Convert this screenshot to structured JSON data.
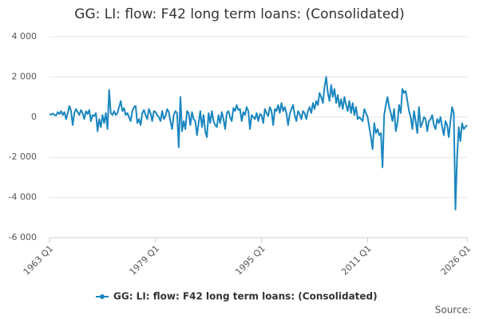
{
  "chart_data": {
    "type": "line",
    "title": "GG: LI: flow: F42 long term loans: (Consolidated)",
    "source": "Source:",
    "categories": [
      "1963 Q1",
      null,
      null,
      null,
      null,
      null,
      null,
      null,
      null,
      null,
      null,
      null,
      null,
      null,
      null,
      null,
      null,
      null,
      null,
      null,
      null,
      null,
      null,
      null,
      null,
      null,
      null,
      null,
      null,
      null,
      null,
      null,
      null,
      null,
      null,
      null,
      null,
      null,
      null,
      null,
      null,
      null,
      null,
      null,
      null,
      null,
      null,
      null,
      null,
      null,
      null,
      null,
      null,
      null,
      null,
      null,
      null,
      null,
      null,
      null,
      null,
      null,
      null,
      null,
      "1979 Q1",
      null,
      null,
      null,
      null,
      null,
      null,
      null,
      null,
      null,
      null,
      null,
      null,
      null,
      null,
      null,
      null,
      null,
      null,
      null,
      null,
      null,
      null,
      null,
      null,
      null,
      null,
      null,
      null,
      null,
      null,
      null,
      null,
      null,
      null,
      null,
      null,
      null,
      null,
      null,
      null,
      null,
      null,
      null,
      null,
      null,
      null,
      null,
      null,
      null,
      null,
      null,
      null,
      null,
      null,
      null,
      null,
      null,
      null,
      null,
      null,
      null,
      null,
      null,
      "1995 Q1",
      null,
      null,
      null,
      null,
      null,
      null,
      null,
      null,
      null,
      null,
      null,
      null,
      null,
      null,
      null,
      null,
      null,
      null,
      null,
      null,
      null,
      null,
      null,
      null,
      null,
      null,
      null,
      null,
      null,
      null,
      null,
      null,
      null,
      null,
      null,
      null,
      null,
      null,
      null,
      null,
      null,
      null,
      null,
      null,
      null,
      null,
      null,
      null,
      null,
      null,
      null,
      null,
      null,
      null,
      null,
      null,
      null,
      null,
      null,
      null,
      null,
      null,
      null,
      "2011 Q1",
      null,
      null,
      null,
      null,
      null,
      null,
      null,
      null,
      null,
      null,
      null,
      null,
      null,
      null,
      null,
      null,
      null,
      null,
      null,
      null,
      null,
      null,
      null,
      null,
      null,
      null,
      null,
      null,
      null,
      null,
      null,
      null,
      null,
      null,
      null,
      null,
      null,
      null,
      null,
      null,
      null,
      null,
      null,
      null,
      null,
      null,
      null,
      null,
      null,
      null,
      null,
      null,
      null,
      null,
      null,
      null,
      null,
      null,
      null,
      "2026 Q1"
    ],
    "series": [
      {
        "name": "GG: LI: flow: F42 long term loans: (Consolidated)",
        "color": "#1a86c0",
        "values": [
          150,
          120,
          180,
          100,
          80,
          250,
          150,
          300,
          100,
          250,
          -100,
          200,
          550,
          300,
          -400,
          200,
          400,
          250,
          100,
          350,
          200,
          -100,
          300,
          150,
          350,
          -200,
          100,
          50,
          200,
          -700,
          -100,
          -500,
          100,
          -300,
          200,
          -600,
          1350,
          200,
          100,
          300,
          100,
          200,
          500,
          800,
          300,
          450,
          100,
          200,
          0,
          -200,
          300,
          500,
          550,
          -300,
          -100,
          -400,
          200,
          350,
          100,
          -100,
          400,
          200,
          -200,
          300,
          250,
          100,
          0,
          -200,
          300,
          -100,
          50,
          400,
          250,
          -200,
          -600,
          100,
          300,
          200,
          -1500,
          1000,
          -700,
          -200,
          -600,
          300,
          200,
          -400,
          250,
          -100,
          -200,
          -900,
          -300,
          300,
          -500,
          100,
          -700,
          -1000,
          200,
          -300,
          300,
          -200,
          -400,
          -500,
          100,
          -300,
          250,
          -100,
          -600,
          200,
          300,
          0,
          -200,
          450,
          300,
          600,
          350,
          400,
          -200,
          250,
          100,
          500,
          300,
          -600,
          100,
          0,
          -100,
          200,
          -200,
          150,
          100,
          -300,
          400,
          200,
          50,
          500,
          300,
          -400,
          400,
          300,
          600,
          200,
          700,
          300,
          500,
          200,
          -400,
          150,
          400,
          600,
          100,
          -200,
          300,
          150,
          -100,
          300,
          200,
          -100,
          300,
          500,
          200,
          700,
          400,
          800,
          600,
          1200,
          1000,
          700,
          1500,
          2000,
          1200,
          800,
          1600,
          1000,
          1400,
          700,
          1100,
          500,
          900,
          400,
          1000,
          600,
          300,
          800,
          200,
          700,
          100,
          500,
          -100,
          0,
          -100,
          -200,
          400,
          200,
          0,
          -500,
          -1000,
          -1600,
          -300,
          -800,
          -600,
          -900,
          -800,
          -2500,
          100,
          600,
          1000,
          500,
          200,
          -200,
          400,
          -700,
          -300,
          600,
          200,
          1400,
          1200,
          1300,
          800,
          300,
          0,
          -600,
          300,
          -200,
          -800,
          500,
          -500,
          -300,
          0,
          -100,
          -700,
          -200,
          -100,
          100,
          -400,
          -600,
          -100,
          -300,
          0,
          -500,
          -900,
          -200,
          -400,
          -1000,
          -200,
          500,
          200,
          -4600,
          -2000,
          -500,
          -1200,
          -300,
          -600,
          -500,
          -400
        ]
      }
    ],
    "ylim": [
      -6000,
      4000
    ],
    "yticks": [
      {
        "value": -6000,
        "label": "-6 000"
      },
      {
        "value": -4000,
        "label": "-4 000"
      },
      {
        "value": -2000,
        "label": "-2 000"
      },
      0,
      {
        "value": 2000,
        "label": "2 000"
      },
      {
        "value": 4000,
        "label": "4 000"
      }
    ],
    "grid": true
  }
}
